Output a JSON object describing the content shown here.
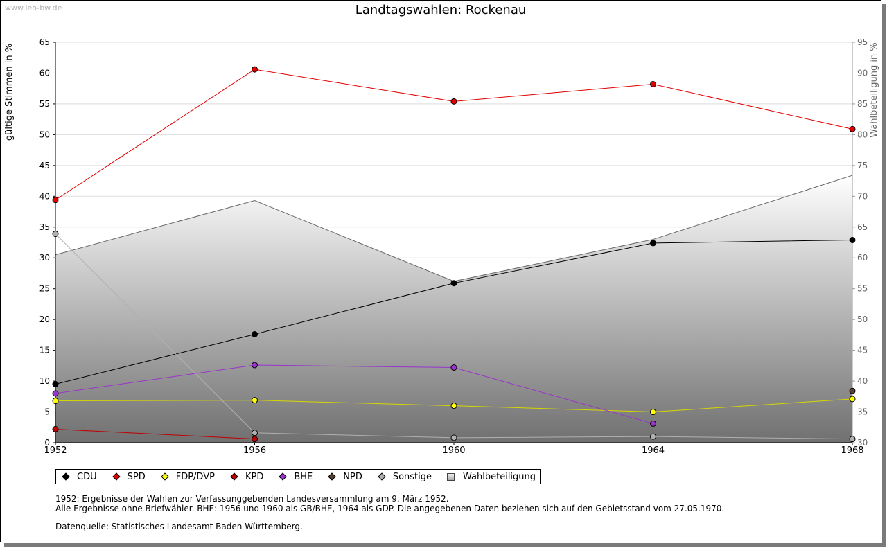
{
  "watermark": "www.leo-bw.de",
  "notes": {
    "line1": "1952: Ergebnisse der Wahlen zur Verfassunggebenden Landesversammlung am 9. März 1952.",
    "line2": "Alle Ergebnisse ohne Briefwähler. BHE: 1956 und 1960 als GB/BHE, 1964 als GDP. Die angegebenen Daten beziehen sich auf den Gebietsstand vom 27.05.1970.",
    "source": "Datenquelle: Statistisches Landesamt Baden-Württemberg."
  },
  "chart_data": {
    "type": "line",
    "title": "Landtagswahlen: Rockenau",
    "ylabel": "gültige Stimmen in %",
    "y2label": "Wahlbeteiligung in %",
    "x": [
      1952,
      1956,
      1960,
      1964,
      1968
    ],
    "ylim": [
      0,
      65
    ],
    "y2lim": [
      30,
      95
    ],
    "yticks": [
      0,
      5,
      10,
      15,
      20,
      25,
      30,
      35,
      40,
      45,
      50,
      55,
      60,
      65
    ],
    "y2ticks": [
      30,
      35,
      40,
      45,
      50,
      55,
      60,
      65,
      70,
      75,
      80,
      85,
      90,
      95
    ],
    "series": [
      {
        "name": "CDU",
        "color": "#000000",
        "points": [
          [
            1952,
            9.5
          ],
          [
            1956,
            17.6
          ],
          [
            1960,
            25.9
          ],
          [
            1964,
            32.4
          ],
          [
            1968,
            32.9
          ]
        ]
      },
      {
        "name": "SPD",
        "color": "#e00000",
        "points": [
          [
            1952,
            39.4
          ],
          [
            1956,
            60.6
          ],
          [
            1960,
            55.4
          ],
          [
            1964,
            58.2
          ],
          [
            1968,
            50.9
          ]
        ]
      },
      {
        "name": "FDP/DVP",
        "color": "#ffff00",
        "points": [
          [
            1952,
            6.8
          ],
          [
            1956,
            6.9
          ],
          [
            1960,
            6.0
          ],
          [
            1964,
            5.0
          ],
          [
            1968,
            7.1
          ]
        ]
      },
      {
        "name": "KPD",
        "color": "#c00000",
        "points": [
          [
            1952,
            2.2
          ],
          [
            1956,
            0.6
          ]
        ]
      },
      {
        "name": "BHE",
        "color": "#9933cc",
        "points": [
          [
            1952,
            8.0
          ],
          [
            1956,
            12.6
          ],
          [
            1960,
            12.2
          ],
          [
            1964,
            3.1
          ]
        ]
      },
      {
        "name": "NPD",
        "color": "#5a4030",
        "points": [
          [
            1968,
            8.4
          ]
        ]
      },
      {
        "name": "Sonstige",
        "color": "#b0b0b0",
        "points": [
          [
            1952,
            33.9
          ],
          [
            1956,
            1.6
          ],
          [
            1960,
            0.8
          ],
          [
            1964,
            1.0
          ],
          [
            1968,
            0.6
          ]
        ]
      }
    ],
    "turnout": {
      "name": "Wahlbeteiligung",
      "points": [
        [
          1952,
          60.5
        ],
        [
          1956,
          69.3
        ],
        [
          1960,
          56.2
        ],
        [
          1964,
          63.0
        ],
        [
          1968,
          73.4
        ]
      ]
    }
  }
}
